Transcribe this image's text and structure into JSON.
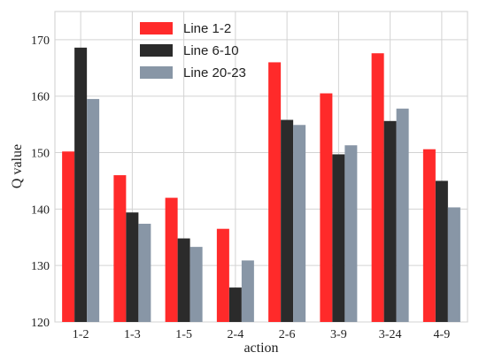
{
  "chart_data": {
    "type": "bar",
    "xlabel": "action",
    "ylabel": "Q value",
    "categories": [
      "1-2",
      "1-3",
      "1-5",
      "2-4",
      "2-6",
      "3-9",
      "3-24",
      "4-9"
    ],
    "ylim": [
      120,
      175
    ],
    "yticks": [
      120,
      130,
      140,
      150,
      160,
      170
    ],
    "grid": true,
    "legend_position": "top-center",
    "series": [
      {
        "name": "Line 1-2",
        "color": "#ff2a2a",
        "values": [
          150.2,
          146.0,
          142.0,
          136.5,
          166.0,
          160.5,
          167.6,
          150.6
        ]
      },
      {
        "name": "Line 6-10",
        "color": "#2b2b2b",
        "values": [
          168.6,
          139.4,
          134.8,
          126.1,
          155.8,
          149.7,
          155.6,
          145.0
        ]
      },
      {
        "name": "Line 20-23",
        "color": "#8896a6",
        "values": [
          159.5,
          137.4,
          133.3,
          130.9,
          154.9,
          151.3,
          157.8,
          140.3
        ]
      }
    ]
  }
}
